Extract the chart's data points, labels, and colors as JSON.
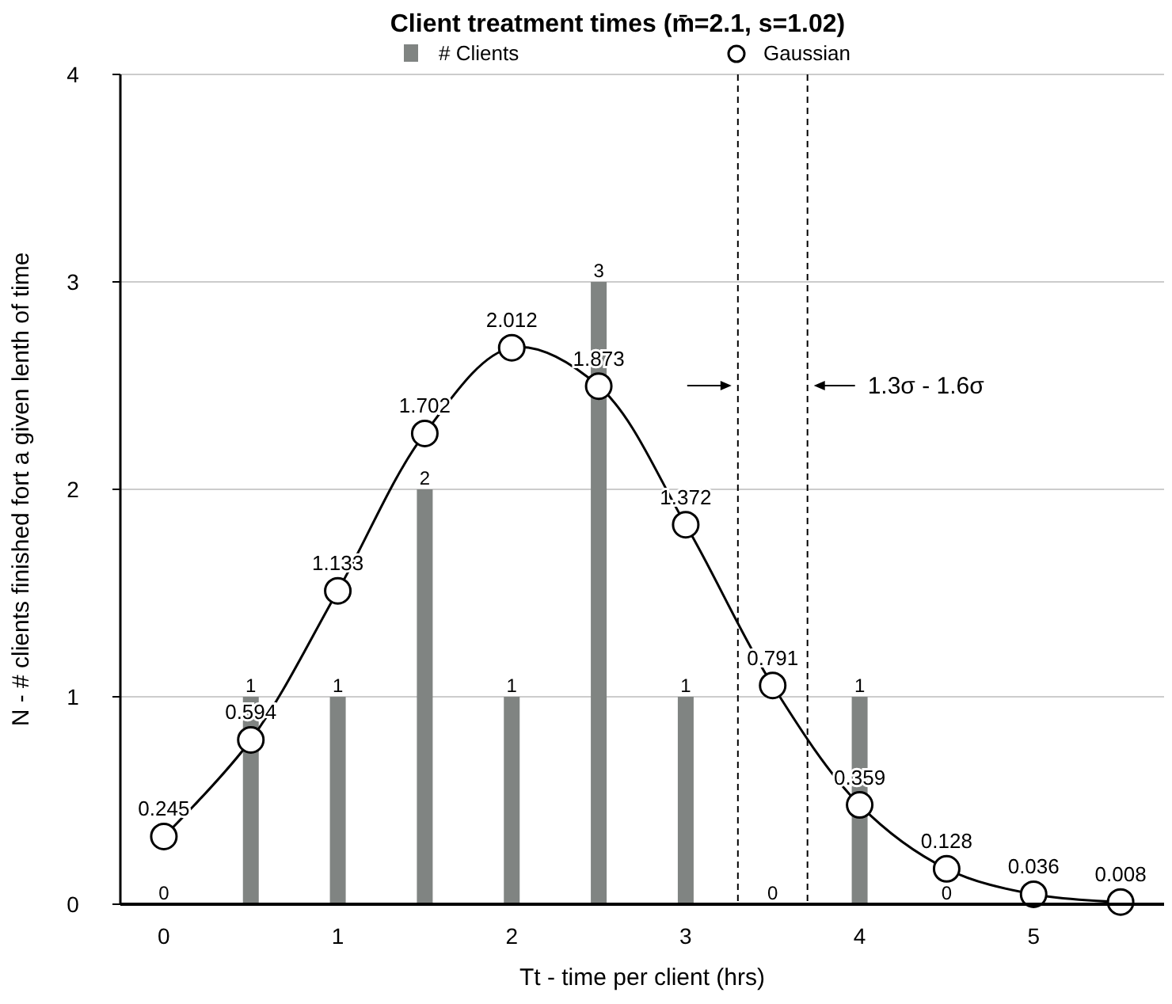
{
  "chart_data": {
    "type": "bar",
    "title": "Client treatment times (m̄=2.1, s=1.02)",
    "xlabel": "Tt - time per client (hrs)",
    "ylabel": "N - # clients finished fort a given lenth of time",
    "xlim": [
      -0.25,
      5.75
    ],
    "xticks": [
      0,
      1,
      2,
      3,
      4,
      5
    ],
    "ylim": [
      0,
      4
    ],
    "yticks": [
      0,
      1,
      2,
      3,
      4
    ],
    "y2lim": [
      0,
      3
    ],
    "tick_labels": "xy",
    "grid": "y",
    "legend": "top",
    "data_labels": true,
    "series": [
      {
        "name": "# Clients",
        "color": "#808482",
        "x": [
          0,
          0.5,
          1,
          1.5,
          2,
          2.5,
          3,
          3.5,
          4,
          4.5
        ],
        "values": [
          0,
          1,
          1,
          2,
          1,
          3,
          1,
          0,
          1,
          0
        ]
      },
      {
        "name": "Gaussian",
        "type": "line",
        "axis": "y2",
        "marker": "circle",
        "line_style": "solid",
        "color": "#000000",
        "x": [
          0,
          0.5,
          1,
          1.5,
          2,
          2.5,
          3,
          3.5,
          4,
          4.5,
          5,
          5.5
        ],
        "values": [
          0.245,
          0.594,
          1.133,
          1.702,
          2.012,
          1.873,
          1.372,
          0.791,
          0.359,
          0.128,
          0.036,
          0.008
        ]
      }
    ],
    "ref_lines": [
      {
        "axis": "x",
        "value": 3.3,
        "line_style": "dashed",
        "color": "#000000"
      },
      {
        "axis": "x",
        "value": 3.7,
        "line_style": "dashed",
        "color": "#000000"
      }
    ],
    "annotations": [
      {
        "text": "1.3σ - 1.6σ",
        "x": 3.7,
        "y": 2.5
      }
    ]
  }
}
